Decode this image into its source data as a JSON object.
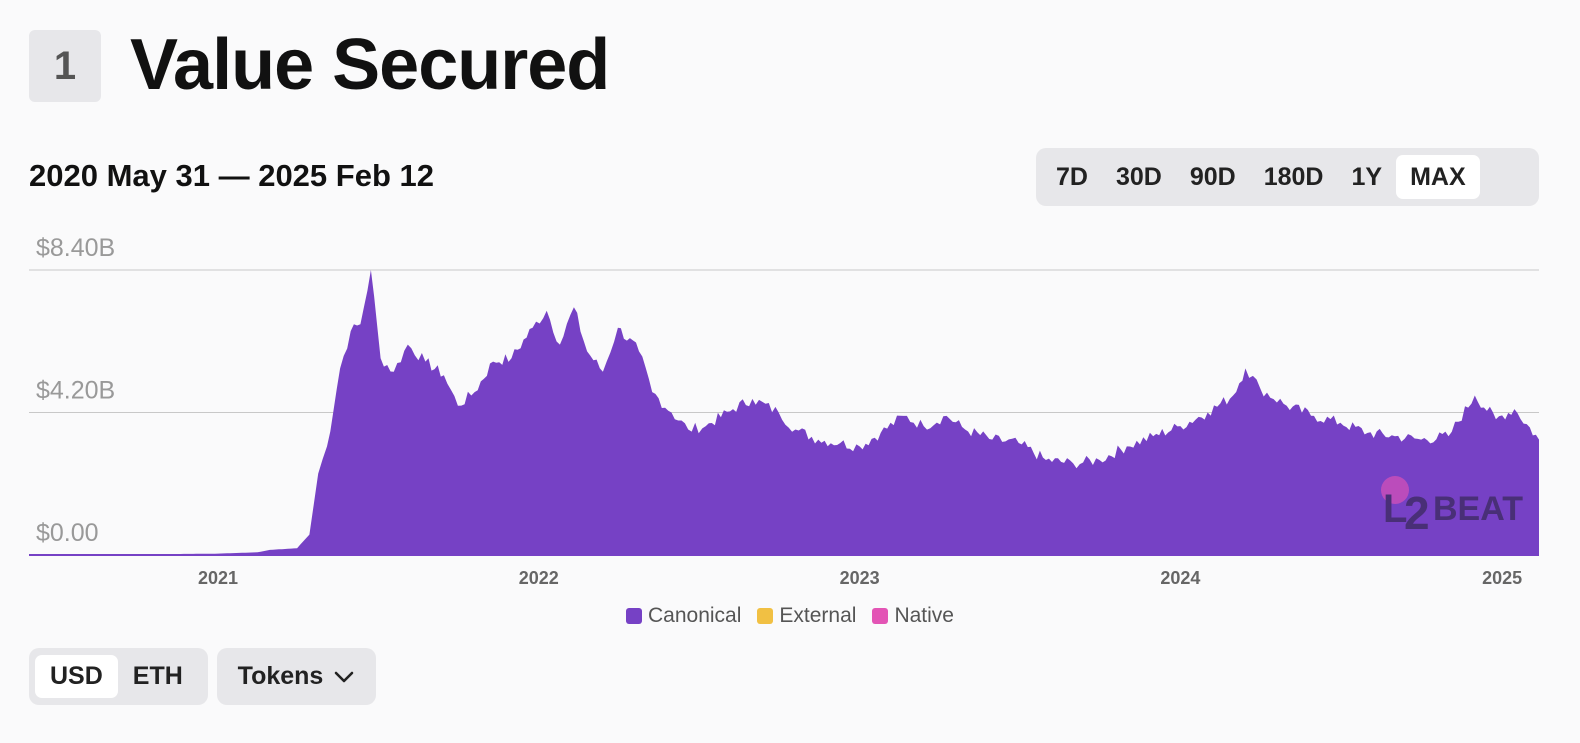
{
  "section": {
    "number": "1",
    "title": "Value Secured"
  },
  "date_range": "2020 May 31 — 2025 Feb 12",
  "range_buttons": [
    "7D",
    "30D",
    "90D",
    "180D",
    "1Y",
    "MAX"
  ],
  "range_selected": "MAX",
  "unit_buttons": [
    "USD",
    "ETH"
  ],
  "unit_selected": "USD",
  "tokens_label": "Tokens",
  "colors": {
    "canonical": "#7641c5",
    "external": "#f1c043",
    "native": "#e354b5",
    "grid": "#c8c8c8",
    "tick": "#999"
  },
  "chart_data": {
    "type": "area",
    "title": "",
    "xlabel": "",
    "ylabel": "",
    "y_ticks": [
      "$0.00",
      "$4.20B",
      "$8.40B"
    ],
    "ylim": [
      0,
      8.4
    ],
    "x_ticks": [
      "2021",
      "2022",
      "2023",
      "2024",
      "2025"
    ],
    "x_range": [
      "2020-05-31",
      "2025-02-12"
    ],
    "legend": [
      "Canonical",
      "External",
      "Native"
    ],
    "legend_position": "bottom-center",
    "grid": true,
    "series": [
      {
        "name": "Canonical",
        "points": [
          [
            "2020-05-31",
            0.01
          ],
          [
            "2020-10-01",
            0.02
          ],
          [
            "2021-01-01",
            0.04
          ],
          [
            "2021-02-15",
            0.08
          ],
          [
            "2021-03-01",
            0.15
          ],
          [
            "2021-04-01",
            0.2
          ],
          [
            "2021-04-15",
            0.6
          ],
          [
            "2021-04-25",
            2.4
          ],
          [
            "2021-05-05",
            3.2
          ],
          [
            "2021-05-20",
            5.5
          ],
          [
            "2021-06-01",
            6.6
          ],
          [
            "2021-06-12",
            6.8
          ],
          [
            "2021-06-24",
            8.4
          ],
          [
            "2021-07-05",
            5.8
          ],
          [
            "2021-07-20",
            5.4
          ],
          [
            "2021-08-05",
            6.2
          ],
          [
            "2021-08-25",
            5.7
          ],
          [
            "2021-09-15",
            5.3
          ],
          [
            "2021-10-01",
            4.4
          ],
          [
            "2021-10-20",
            4.8
          ],
          [
            "2021-11-10",
            5.7
          ],
          [
            "2021-12-01",
            5.8
          ],
          [
            "2021-12-25",
            6.7
          ],
          [
            "2022-01-10",
            7.2
          ],
          [
            "2022-01-25",
            6.2
          ],
          [
            "2022-02-10",
            7.3
          ],
          [
            "2022-02-25",
            6.0
          ],
          [
            "2022-03-15",
            5.4
          ],
          [
            "2022-04-01",
            6.7
          ],
          [
            "2022-04-25",
            6.0
          ],
          [
            "2022-05-10",
            4.8
          ],
          [
            "2022-06-01",
            4.2
          ],
          [
            "2022-06-20",
            3.7
          ],
          [
            "2022-07-10",
            3.8
          ],
          [
            "2022-08-10",
            4.3
          ],
          [
            "2022-09-01",
            4.6
          ],
          [
            "2022-10-01",
            4.2
          ],
          [
            "2022-10-20",
            3.7
          ],
          [
            "2022-11-15",
            3.4
          ],
          [
            "2022-12-10",
            3.3
          ],
          [
            "2023-01-01",
            3.2
          ],
          [
            "2023-01-25",
            3.6
          ],
          [
            "2023-02-20",
            4.1
          ],
          [
            "2023-03-15",
            3.8
          ],
          [
            "2023-04-10",
            4.1
          ],
          [
            "2023-05-01",
            3.7
          ],
          [
            "2023-06-01",
            3.4
          ],
          [
            "2023-07-01",
            3.3
          ],
          [
            "2023-08-01",
            2.8
          ],
          [
            "2023-09-01",
            2.7
          ],
          [
            "2023-10-01",
            2.8
          ],
          [
            "2023-11-01",
            3.2
          ],
          [
            "2023-12-01",
            3.5
          ],
          [
            "2024-01-01",
            3.8
          ],
          [
            "2024-02-01",
            4.2
          ],
          [
            "2024-03-01",
            4.7
          ],
          [
            "2024-03-15",
            5.5
          ],
          [
            "2024-04-01",
            4.9
          ],
          [
            "2024-05-01",
            4.4
          ],
          [
            "2024-06-01",
            4.1
          ],
          [
            "2024-07-01",
            3.9
          ],
          [
            "2024-08-01",
            3.6
          ],
          [
            "2024-09-01",
            3.5
          ],
          [
            "2024-10-01",
            3.4
          ],
          [
            "2024-11-01",
            3.5
          ],
          [
            "2024-12-01",
            4.7
          ],
          [
            "2024-12-25",
            4.0
          ],
          [
            "2025-01-15",
            4.3
          ],
          [
            "2025-02-12",
            3.4
          ]
        ]
      }
    ]
  }
}
